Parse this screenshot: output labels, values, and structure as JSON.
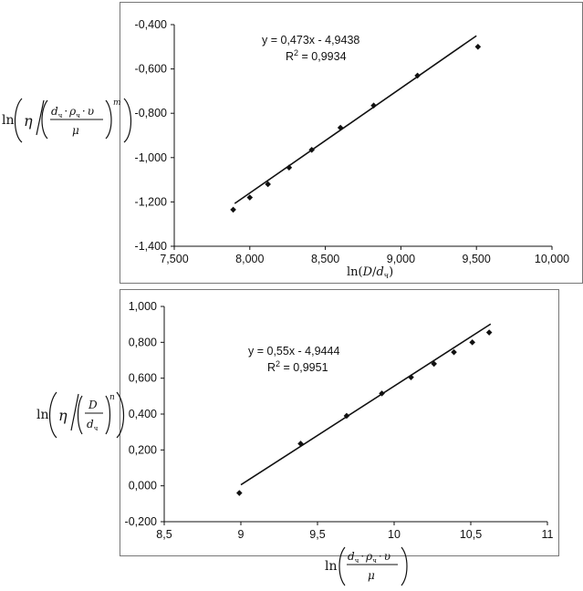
{
  "chart_data": [
    {
      "type": "scatter",
      "x_tick_labels": [
        "7,500",
        "8,000",
        "8,500",
        "9,000",
        "9,500",
        "10,000"
      ],
      "y_tick_labels": [
        "-0,400",
        "-0,600",
        "-0,800",
        "-1,000",
        "-1,200",
        "-1,400"
      ],
      "xlim": [
        7.5,
        10.0
      ],
      "ylim": [
        -1.4,
        -0.4
      ],
      "grid": false,
      "trendline": {
        "slope": 0.473,
        "intercept": -4.9438,
        "x_range": [
          7.9,
          9.5
        ]
      },
      "equation": "y = 0,473x - 4,9438",
      "r2_label": "R",
      "r2_value": " = 0,9934",
      "points": [
        {
          "x": 7.89,
          "y": -1.235
        },
        {
          "x": 8.0,
          "y": -1.18
        },
        {
          "x": 8.12,
          "y": -1.12
        },
        {
          "x": 8.26,
          "y": -1.045
        },
        {
          "x": 8.41,
          "y": -0.965
        },
        {
          "x": 8.6,
          "y": -0.865
        },
        {
          "x": 8.82,
          "y": -0.765
        },
        {
          "x": 9.11,
          "y": -0.63
        },
        {
          "x": 9.51,
          "y": -0.5
        }
      ],
      "xlabel": {
        "prefix": "ln(",
        "num": "D",
        "den": "d",
        "den_sub": "ч",
        "suffix": ")"
      },
      "ylabel": {
        "ln": "ln",
        "eta": "η",
        "d": "d",
        "sub": "ч",
        "rho": "ρ",
        "upsilon": "υ",
        "mu": "μ",
        "dot": "·",
        "power": "m"
      }
    },
    {
      "type": "scatter",
      "x_tick_labels": [
        "8,5",
        "9",
        "9,5",
        "10",
        "10,5",
        "11"
      ],
      "y_tick_labels": [
        "1,000",
        "0,800",
        "0,600",
        "0,400",
        "0,200",
        "0,000",
        "-0,200"
      ],
      "xlim": [
        8.5,
        11.0
      ],
      "ylim": [
        -0.2,
        1.0
      ],
      "grid": false,
      "trendline": {
        "slope": 0.55,
        "intercept": -4.9444,
        "x_range": [
          9.0,
          10.63
        ]
      },
      "equation": "y = 0,55x - 4,9444",
      "r2_label": "R",
      "r2_value": " = 0,9951",
      "points": [
        {
          "x": 8.99,
          "y": -0.04
        },
        {
          "x": 9.39,
          "y": 0.235
        },
        {
          "x": 9.69,
          "y": 0.39
        },
        {
          "x": 9.92,
          "y": 0.515
        },
        {
          "x": 10.11,
          "y": 0.605
        },
        {
          "x": 10.26,
          "y": 0.68
        },
        {
          "x": 10.39,
          "y": 0.745
        },
        {
          "x": 10.51,
          "y": 0.8
        },
        {
          "x": 10.62,
          "y": 0.855
        }
      ],
      "xlabel": {
        "ln": "ln",
        "d": "d",
        "sub": "ч",
        "rho": "ρ",
        "upsilon": "υ",
        "mu": "μ",
        "dot": "·"
      },
      "ylabel": {
        "ln": "ln",
        "eta": "η",
        "num": "D",
        "den": "d",
        "den_sub": "ч",
        "power": "n"
      }
    }
  ],
  "r2_superscript": "2",
  "colors": {
    "ink": "#111111",
    "frame": "#777777",
    "background": "#ffffff"
  }
}
